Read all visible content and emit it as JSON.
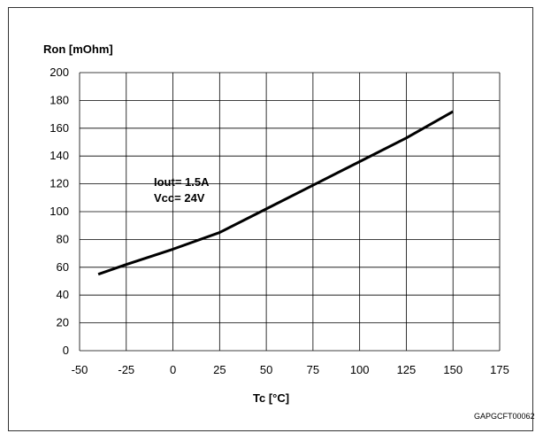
{
  "chart_data": {
    "type": "line",
    "ylabel": "Ron [mOhm]",
    "xlabel": "Tc [°C]",
    "xlim": [
      -50,
      175
    ],
    "ylim": [
      0,
      200
    ],
    "x_ticks": [
      -50,
      -25,
      0,
      25,
      50,
      75,
      100,
      125,
      150,
      175
    ],
    "y_ticks": [
      0,
      20,
      40,
      60,
      80,
      100,
      120,
      140,
      160,
      180,
      200
    ],
    "grid": true,
    "series": [
      {
        "x": [
          -40,
          -25,
          0,
          25,
          50,
          75,
          100,
          125,
          150
        ],
        "y": [
          55,
          62,
          73,
          85,
          102,
          119,
          136,
          153,
          172
        ]
      }
    ],
    "annotations": [
      "Iout= 1.5A",
      "Vcc= 24V"
    ],
    "figure_code": "GAPGCFT00062",
    "line_color": "#000000",
    "grid_color": "#000000"
  }
}
